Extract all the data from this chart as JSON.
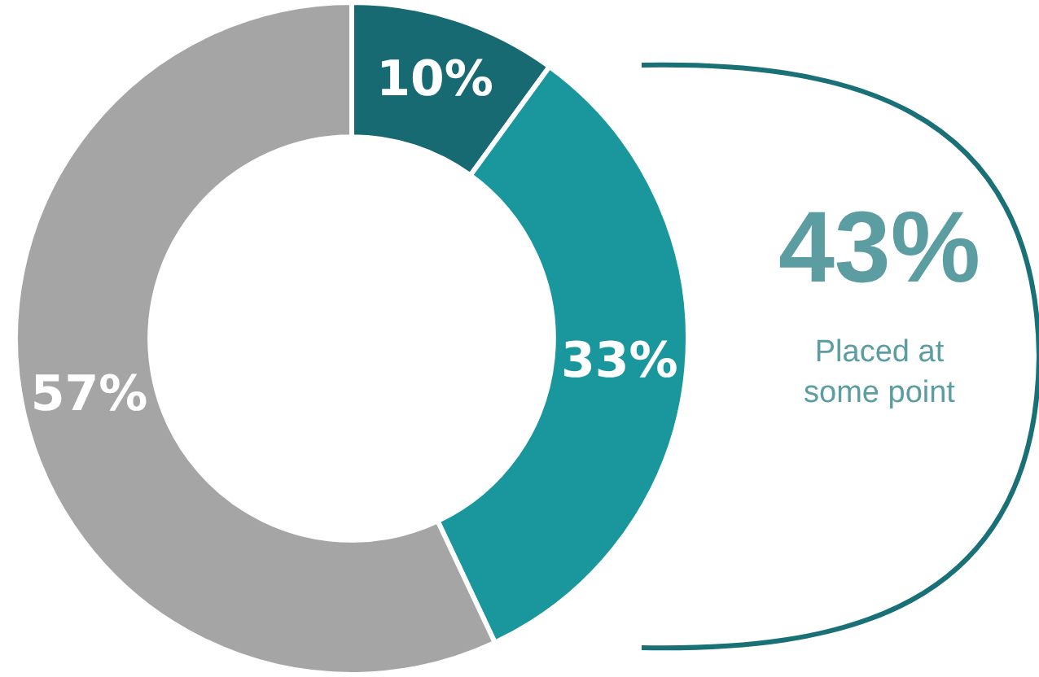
{
  "chart_data": {
    "type": "donut",
    "categories": [
      null,
      null,
      null
    ],
    "values": [
      10,
      33,
      57
    ],
    "colors": [
      "#186a72",
      "#1a979d",
      "#a5a5a5"
    ],
    "value_labels": [
      "10%",
      "33%",
      "57%"
    ],
    "annotations": [
      "43%",
      "Placed at some point"
    ],
    "legend": false
  }
}
